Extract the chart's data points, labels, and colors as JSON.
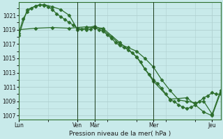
{
  "xlabel": "Pression niveau de la mer( hPa )",
  "bg_color": "#c8eaea",
  "grid_color": "#b0d0d0",
  "line_color": "#2d6e2d",
  "ylim": [
    1006.5,
    1022.8
  ],
  "yticks": [
    1007,
    1009,
    1011,
    1013,
    1015,
    1017,
    1019,
    1021
  ],
  "xtick_labels": [
    "Lun",
    "Ven",
    "Mar",
    "Mer",
    "Jeu"
  ],
  "xtick_positions": [
    0,
    14,
    18,
    32,
    46
  ],
  "xlim": [
    0,
    48
  ],
  "vline_positions": [
    14,
    18,
    32
  ],
  "line1_x": [
    0,
    1,
    2,
    3,
    4,
    5,
    6,
    7,
    8,
    9,
    10,
    11,
    12,
    13,
    14,
    15,
    16,
    17,
    18,
    19,
    20,
    21,
    22,
    23,
    24,
    25,
    26,
    27,
    28,
    29,
    30,
    31,
    32,
    33,
    34,
    35,
    36,
    37,
    38,
    39,
    40,
    41,
    42,
    43,
    44,
    45,
    46,
    47,
    48
  ],
  "line1_y": [
    1018.5,
    1020.5,
    1021.5,
    1022.0,
    1022.3,
    1022.5,
    1022.4,
    1022.2,
    1021.8,
    1021.2,
    1020.8,
    1020.4,
    1020.0,
    1019.6,
    1019.2,
    1019.1,
    1019.0,
    1019.1,
    1019.3,
    1019.0,
    1018.8,
    1018.3,
    1017.8,
    1017.2,
    1016.8,
    1016.5,
    1016.2,
    1015.8,
    1015.2,
    1014.5,
    1013.5,
    1012.8,
    1012.0,
    1011.5,
    1010.8,
    1010.0,
    1009.2,
    1009.0,
    1008.5,
    1008.2,
    1008.0,
    1008.2,
    1008.5,
    1009.0,
    1009.5,
    1009.8,
    1010.2,
    1010.0,
    1010.0
  ],
  "line2_x": [
    0,
    2,
    4,
    6,
    8,
    10,
    12,
    14,
    16,
    18,
    20,
    22,
    24,
    26,
    28,
    30,
    32,
    34,
    36,
    38,
    40,
    42,
    44,
    46,
    48
  ],
  "line2_y": [
    1018.2,
    1021.8,
    1022.3,
    1022.5,
    1022.2,
    1021.8,
    1021.0,
    1019.0,
    1019.2,
    1019.5,
    1019.0,
    1018.0,
    1017.0,
    1016.5,
    1016.0,
    1015.0,
    1013.8,
    1012.0,
    1010.5,
    1009.2,
    1009.0,
    1008.8,
    1009.0,
    1007.2,
    1010.5
  ],
  "line3_x": [
    0,
    4,
    8,
    12,
    16,
    18,
    20,
    24,
    28,
    32,
    36,
    40,
    44,
    46,
    48
  ],
  "line3_y": [
    1019.0,
    1019.2,
    1019.3,
    1019.2,
    1019.4,
    1019.3,
    1019.2,
    1017.2,
    1015.2,
    1011.8,
    1009.3,
    1009.5,
    1007.5,
    1007.0,
    1010.2
  ],
  "marker": "D",
  "markersize": 2.5
}
